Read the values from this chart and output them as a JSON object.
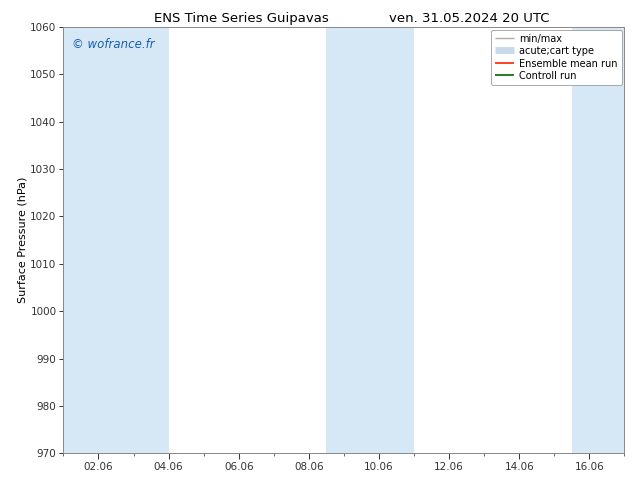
{
  "title_left": "ENS Time Series Guipavas",
  "title_right": "ven. 31.05.2024 20 UTC",
  "ylabel": "Surface Pressure (hPa)",
  "ylim": [
    970,
    1060
  ],
  "yticks": [
    970,
    980,
    990,
    1000,
    1010,
    1020,
    1030,
    1040,
    1050,
    1060
  ],
  "xlabel_ticks": [
    "02.06",
    "04.06",
    "06.06",
    "08.06",
    "10.06",
    "12.06",
    "14.06",
    "16.06"
  ],
  "xtick_positions": [
    1,
    3,
    5,
    7,
    9,
    11,
    13,
    15
  ],
  "xmin": 0,
  "xmax": 16,
  "bg_color": "#ffffff",
  "plot_bg_color": "#ffffff",
  "watermark": "© wofrance.fr",
  "watermark_color": "#1a5fb0",
  "shaded_bands": [
    {
      "xstart": 0.0,
      "xend": 2.0,
      "color": "#d6e8f5"
    },
    {
      "xstart": 2.0,
      "xend": 3.0,
      "color": "#d6e8f5"
    },
    {
      "xstart": 7.5,
      "xend": 10.0,
      "color": "#d6e8f5"
    },
    {
      "xstart": 14.5,
      "xend": 16.0,
      "color": "#d6e8f5"
    }
  ],
  "legend_entries": [
    {
      "label": "min/max",
      "color": "#aaaaaa",
      "lw": 1.0,
      "style": "errorbar"
    },
    {
      "label": "acute;cart type",
      "color": "#c8daea",
      "lw": 5.0,
      "style": "line"
    },
    {
      "label": "Ensemble mean run",
      "color": "#ff2200",
      "lw": 1.2,
      "style": "line"
    },
    {
      "label": "Controll run",
      "color": "#006600",
      "lw": 1.2,
      "style": "line"
    }
  ],
  "grid_color": "#dddddd",
  "tick_color": "#333333",
  "border_color": "#888888",
  "font_size_title": 9.5,
  "font_size_axis": 8,
  "font_size_tick": 7.5,
  "font_size_legend": 7,
  "font_size_watermark": 8.5
}
